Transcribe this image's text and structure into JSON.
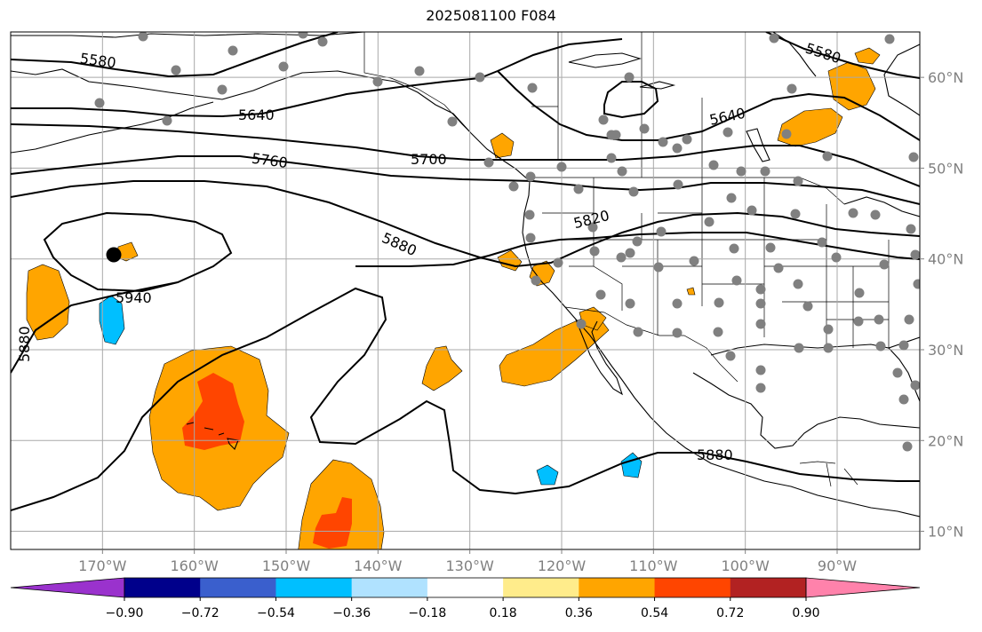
{
  "title": "2025081100 F084",
  "map": {
    "projection": "plate-carree",
    "lon_range": [
      -180,
      -81
    ],
    "lat_range": [
      8,
      65
    ],
    "lon_ticks": [
      {
        "value": -170,
        "label": "170°W"
      },
      {
        "value": -160,
        "label": "160°W"
      },
      {
        "value": -150,
        "label": "150°W"
      },
      {
        "value": -140,
        "label": "140°W"
      },
      {
        "value": -130,
        "label": "130°W"
      },
      {
        "value": -120,
        "label": "120°W"
      },
      {
        "value": -110,
        "label": "110°W"
      },
      {
        "value": -100,
        "label": "100°W"
      },
      {
        "value": -90,
        "label": "90°W"
      }
    ],
    "lat_ticks": [
      {
        "value": 60,
        "label": "60°N"
      },
      {
        "value": 50,
        "label": "50°N"
      },
      {
        "value": 40,
        "label": "40°N"
      },
      {
        "value": 30,
        "label": "30°N"
      },
      {
        "value": 20,
        "label": "20°N"
      },
      {
        "value": 10,
        "label": "10°N"
      }
    ],
    "grid": true,
    "contour_labels": [
      "5580",
      "5640",
      "5700",
      "5760",
      "5820",
      "5880",
      "5940"
    ],
    "filled_field_levels": [
      -0.9,
      -0.72,
      -0.54,
      -0.36,
      -0.18,
      0.18,
      0.36,
      0.54,
      0.72,
      0.9
    ],
    "station_markers": "gray dots",
    "highlight_marker": "black dot near 168°W 40°N"
  },
  "colorbar": {
    "colors": [
      "#9a32cd",
      "#00008b",
      "#3a5fcd",
      "#00bfff",
      "#b0e2ff",
      "#ffffff",
      "#ffec8b",
      "#ffa500",
      "#ff4500",
      "#b22222",
      "#ff82ab"
    ],
    "tick_labels": [
      "−0.90",
      "−0.72",
      "−0.54",
      "−0.36",
      "−0.18",
      "0.18",
      "0.36",
      "0.54",
      "0.72",
      "0.90"
    ]
  }
}
